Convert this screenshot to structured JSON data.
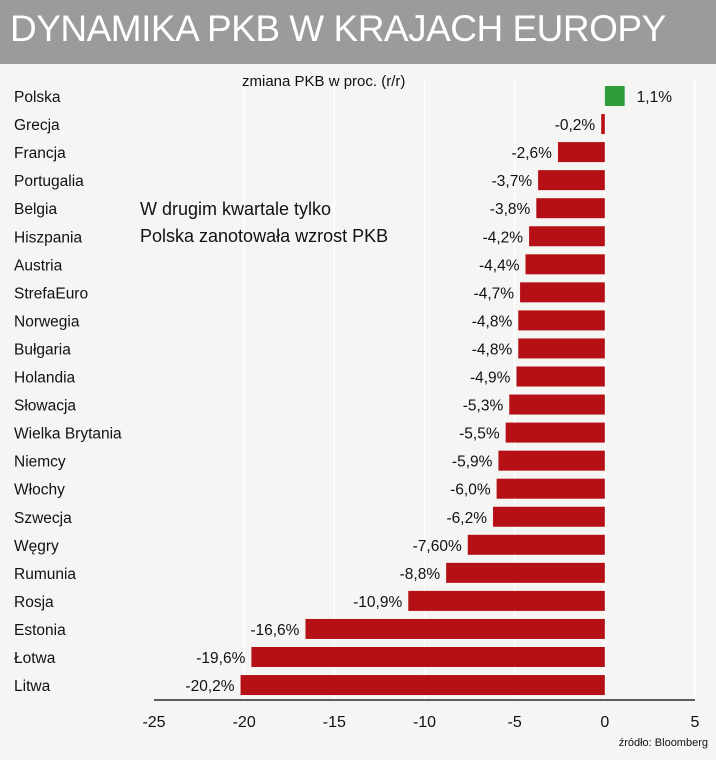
{
  "title": "DYNAMIKA PKB W KRAJACH EUROPY",
  "subtitle": "zmiana PKB w proc. (r/r)",
  "annotation_line1": "W drugim kwartale tylko",
  "annotation_line2": "Polska zanotowała wzrost PKB",
  "source": "źródło: Bloomberg",
  "colors": {
    "positive": "#2e9e3a",
    "negative": "#b51016",
    "title_bar": "#9b9b9b",
    "background": "#f5f5f3",
    "grid": "#ffffff"
  },
  "chart_data": {
    "type": "bar",
    "orientation": "horizontal",
    "categories": [
      "Polska",
      "Grecja",
      "Francja",
      "Portugalia",
      "Belgia",
      "Hiszpania",
      "Austria",
      "StrefaEuro",
      "Norwegia",
      "Bułgaria",
      "Holandia",
      "Słowacja",
      "Wielka Brytania",
      "Niemcy",
      "Włochy",
      "Szwecja",
      "Węgry",
      "Rumunia",
      "Rosja",
      "Estonia",
      "Łotwa",
      "Litwa"
    ],
    "values": [
      1.1,
      -0.2,
      -2.6,
      -3.7,
      -3.8,
      -4.2,
      -4.4,
      -4.7,
      -4.8,
      -4.8,
      -4.9,
      -5.3,
      -5.5,
      -5.9,
      -6.0,
      -6.2,
      -7.6,
      -8.8,
      -10.9,
      -16.6,
      -19.6,
      -20.2
    ],
    "value_labels": [
      "1,1%",
      "-0,2%",
      "-2,6%",
      "-3,7%",
      "-3,8%",
      "-4,2%",
      "-4,4%",
      "-4,7%",
      "-4,8%",
      "-4,8%",
      "-4,9%",
      "-5,3%",
      "-5,5%",
      "-5,9%",
      "-6,0%",
      "-6,2%",
      "-7,60%",
      "-8,8%",
      "-10,9%",
      "-16,6%",
      "-19,6%",
      "-20,2%"
    ],
    "xlim": [
      -25,
      5
    ],
    "xticks": [
      -25,
      -20,
      -15,
      -10,
      -5,
      0,
      5
    ],
    "xtick_labels": [
      "-25",
      "-20",
      "-15",
      "-10",
      "-5",
      "0",
      "5"
    ],
    "title": "DYNAMIKA PKB W KRAJACH EUROPY",
    "xlabel": "",
    "ylabel": "",
    "grid": true
  }
}
